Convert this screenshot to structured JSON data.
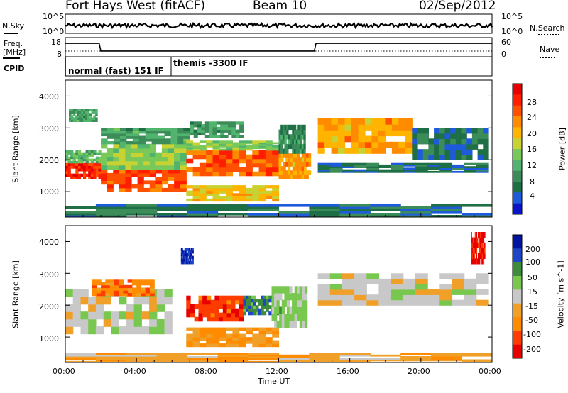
{
  "header": {
    "station": "Fort Hays West (fitACF)",
    "beam": "Beam 10",
    "date": "02/Sep/2012"
  },
  "side_labels": {
    "nsky": "N.Sky",
    "nsearch": "N.Search",
    "freq_line1": "Freq.",
    "freq_line2": "[MHz]",
    "nave": "Nave",
    "cpid": "CPID"
  },
  "top_axes": {
    "noise_ticks": [
      "10^5",
      "10^0"
    ],
    "noise_right_ticks": [
      "10^5",
      "10^0"
    ],
    "freq_ticks": [
      "18",
      "8"
    ],
    "nave_ticks": [
      "60",
      "0"
    ]
  },
  "cpid_modes": [
    {
      "label": "normal (fast) 151 IF",
      "start_h": 0.05,
      "end_h": 6.0
    },
    {
      "label": "themis -3300 IF",
      "start_h": 6.0,
      "end_h": 24.0
    }
  ],
  "freq_trace": [
    {
      "h": 0.0,
      "mhz": 15.0
    },
    {
      "h": 1.9,
      "mhz": 15.0
    },
    {
      "h": 2.0,
      "mhz": 11.0
    },
    {
      "h": 14.0,
      "mhz": 11.0
    },
    {
      "h": 14.1,
      "mhz": 15.0
    },
    {
      "h": 24.0,
      "mhz": 15.0
    }
  ],
  "nave_level": 10,
  "x_axis": {
    "label": "Time UT",
    "ticks": [
      "00:00",
      "04:00",
      "08:00",
      "12:00",
      "16:00",
      "20:00",
      "00:00"
    ],
    "range_h": [
      0,
      24
    ]
  },
  "power_panel": {
    "ylabel": "Slant Range [km]",
    "yticks": [
      "4000",
      "3000",
      "2000",
      "1000"
    ],
    "ylim": [
      200,
      4500
    ],
    "colorbar_label": "Power [dB]",
    "colorbar_ticks": [
      "28",
      "24",
      "20",
      "16",
      "12",
      "8",
      "4"
    ]
  },
  "velocity_panel": {
    "ylabel": "Slant Range [km]",
    "yticks": [
      "4000",
      "3000",
      "2000",
      "1000"
    ],
    "ylim": [
      200,
      4500
    ],
    "colorbar_label": "Velocity [m s^-1]",
    "colorbar_ticks": [
      "200",
      "100",
      "50",
      "15",
      "-15",
      "-50",
      "-100",
      "-200"
    ]
  },
  "chart_data": [
    {
      "type": "heatmap",
      "title": "Power",
      "xlabel": "Time UT",
      "ylabel": "Slant Range [km]",
      "x_range_h": [
        0,
        24
      ],
      "ylim": [
        200,
        4500
      ],
      "colorbar": {
        "label": "Power [dB]",
        "range": [
          0,
          30
        ],
        "colors": [
          "#0a14c8",
          "#1e5adc",
          "#1e6e46",
          "#3c8c5a",
          "#50b46e",
          "#78c85a",
          "#c8d232",
          "#ffb400",
          "#ff8c00",
          "#ff5000",
          "#ff1e00",
          "#e60000"
        ]
      },
      "regions": [
        {
          "t0": 0.0,
          "t1": 2.0,
          "r0": 1400,
          "r1": 1900,
          "db": 26
        },
        {
          "t0": 0.0,
          "t1": 2.0,
          "r0": 1900,
          "r1": 2300,
          "db": 12
        },
        {
          "t0": 0.2,
          "t1": 1.8,
          "r0": 3200,
          "r1": 3600,
          "db": 10
        },
        {
          "t0": 2.0,
          "t1": 6.8,
          "r0": 1000,
          "r1": 1700,
          "db": 24
        },
        {
          "t0": 2.0,
          "t1": 6.8,
          "r0": 1700,
          "r1": 2500,
          "db": 14
        },
        {
          "t0": 2.0,
          "t1": 7.0,
          "r0": 2500,
          "r1": 3000,
          "db": 10
        },
        {
          "t0": 6.8,
          "t1": 12.0,
          "r0": 1500,
          "r1": 2300,
          "db": 24
        },
        {
          "t0": 6.8,
          "t1": 12.0,
          "r0": 2300,
          "r1": 2600,
          "db": 14
        },
        {
          "t0": 6.8,
          "t1": 12.0,
          "r0": 700,
          "r1": 1200,
          "db": 18
        },
        {
          "t0": 7.0,
          "t1": 10.0,
          "r0": 2700,
          "r1": 3200,
          "db": 10
        },
        {
          "t0": 12.0,
          "t1": 13.8,
          "r0": 1400,
          "r1": 2200,
          "db": 20
        },
        {
          "t0": 12.0,
          "t1": 13.5,
          "r0": 2200,
          "r1": 3100,
          "db": 8
        },
        {
          "t0": 14.2,
          "t1": 19.5,
          "r0": 2200,
          "r1": 3300,
          "db": 20
        },
        {
          "t0": 14.2,
          "t1": 23.8,
          "r0": 1600,
          "r1": 1900,
          "db": 6
        },
        {
          "t0": 19.5,
          "t1": 23.8,
          "r0": 2000,
          "r1": 3000,
          "db": 6
        },
        {
          "t0": 0.0,
          "t1": 24.0,
          "r0": 200,
          "r1": 600,
          "db": 6
        }
      ]
    },
    {
      "type": "heatmap",
      "title": "Velocity",
      "xlabel": "Time UT",
      "ylabel": "Slant Range [km]",
      "x_range_h": [
        0,
        24
      ],
      "ylim": [
        200,
        4500
      ],
      "colorbar": {
        "label": "Velocity [m s^-1]",
        "range": [
          -250,
          250
        ],
        "colors": [
          "#e60000",
          "#ff3c00",
          "#ff8c00",
          "#f0a028",
          "#c8c8c8",
          "#78c850",
          "#3c8c3c",
          "#1e46c8",
          "#0014a0"
        ]
      },
      "regions": [
        {
          "t0": 0.0,
          "t1": 6.0,
          "r0": 1100,
          "r1": 2500,
          "ms": 0
        },
        {
          "t0": 1.5,
          "t1": 5.0,
          "r0": 2300,
          "r1": 2800,
          "ms": -120
        },
        {
          "t0": 6.8,
          "t1": 10.0,
          "r0": 1500,
          "r1": 2300,
          "ms": -180
        },
        {
          "t0": 10.0,
          "t1": 12.0,
          "r0": 1700,
          "r1": 2300,
          "ms": 120
        },
        {
          "t0": 6.8,
          "t1": 12.0,
          "r0": 700,
          "r1": 1300,
          "ms": -80
        },
        {
          "t0": 11.6,
          "t1": 13.6,
          "r0": 1300,
          "r1": 2600,
          "ms": 40
        },
        {
          "t0": 14.2,
          "t1": 23.8,
          "r0": 2000,
          "r1": 3000,
          "ms": 0
        },
        {
          "t0": 22.8,
          "t1": 23.6,
          "r0": 3300,
          "r1": 4300,
          "ms": -200
        },
        {
          "t0": 6.5,
          "t1": 7.2,
          "r0": 3300,
          "r1": 3800,
          "ms": 200
        },
        {
          "t0": 0.0,
          "t1": 24.0,
          "r0": 200,
          "r1": 500,
          "ms": -60
        }
      ]
    }
  ]
}
